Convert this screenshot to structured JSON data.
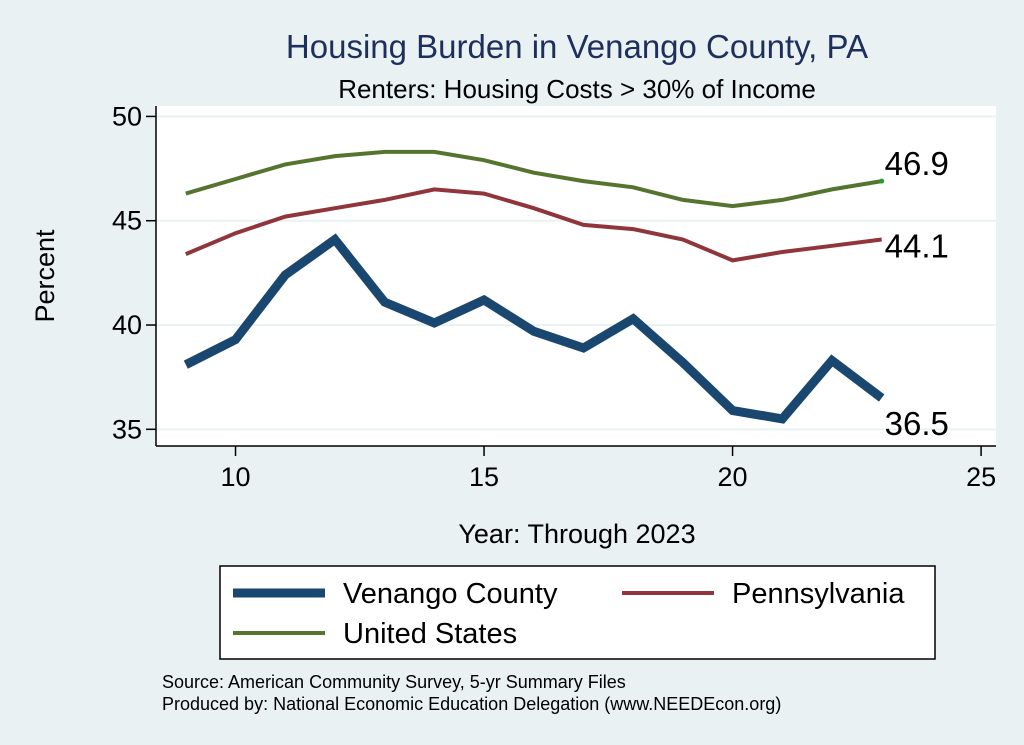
{
  "chart_data": {
    "type": "line",
    "title": "Housing Burden in Venango County, PA",
    "subtitle": "Renters: Housing Costs > 30% of Income",
    "xlabel": "Year: Through 2023",
    "ylabel": "Percent",
    "xlim": [
      8.4,
      25.3
    ],
    "ylim": [
      34.2,
      50.5
    ],
    "xticks": [
      10,
      15,
      20,
      25
    ],
    "yticks": [
      35,
      40,
      45,
      50
    ],
    "grid": true,
    "x": [
      9,
      10,
      11,
      12,
      13,
      14,
      15,
      16,
      17,
      18,
      19,
      20,
      21,
      22,
      23
    ],
    "series": [
      {
        "name": "Venango County",
        "color": "#1a476f",
        "values": [
          38.1,
          39.3,
          42.4,
          44.1,
          41.1,
          40.1,
          41.2,
          39.7,
          38.9,
          40.3,
          38.2,
          35.9,
          35.5,
          38.3,
          36.5
        ],
        "end_label": "36.5"
      },
      {
        "name": "Pennsylvania",
        "color": "#90353b",
        "values": [
          43.4,
          44.4,
          45.2,
          45.6,
          46.0,
          46.5,
          46.3,
          45.6,
          44.8,
          44.6,
          44.1,
          43.1,
          43.5,
          43.8,
          44.1
        ],
        "end_label": "44.1"
      },
      {
        "name": "United States",
        "color": "#55752f",
        "values": [
          46.3,
          47.0,
          47.7,
          48.1,
          48.3,
          48.3,
          47.9,
          47.3,
          46.9,
          46.6,
          46.0,
          45.7,
          46.0,
          46.5,
          46.9
        ],
        "end_label": "46.9"
      }
    ],
    "legend_position": "bottom",
    "notes": [
      "Source: American Community Survey, 5-yr Summary Files",
      "Produced by: National Economic Education Delegation (www.NEEDEcon.org)"
    ]
  }
}
